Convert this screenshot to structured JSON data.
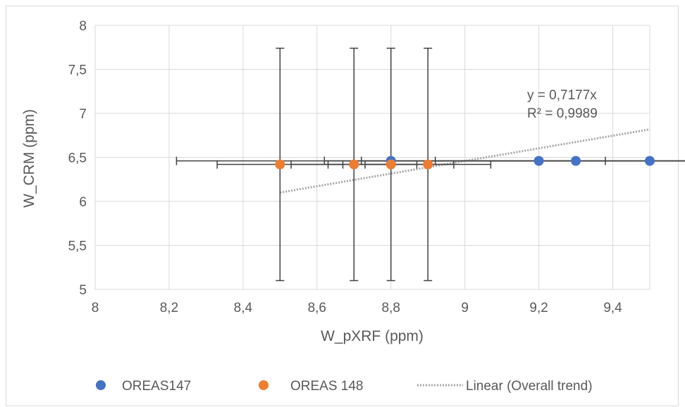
{
  "chart_data": {
    "type": "scatter",
    "title": "",
    "xlabel": "W_pXRF (ppm)",
    "ylabel": "W_CRM (ppm)",
    "xlim": [
      8,
      9.5
    ],
    "ylim": [
      5,
      8
    ],
    "x_ticks": [
      "8",
      "8,2",
      "8,4",
      "8,6",
      "8,8",
      "9",
      "9,2",
      "9,4"
    ],
    "x_tick_values": [
      8,
      8.2,
      8.4,
      8.6,
      8.8,
      9,
      9.2,
      9.4
    ],
    "y_ticks": [
      "5",
      "5,5",
      "6",
      "6,5",
      "7",
      "7,5",
      "8"
    ],
    "y_tick_values": [
      5,
      5.5,
      6,
      6.5,
      7,
      7.5,
      8
    ],
    "grid": "vertical and horizontal major gridlines",
    "series": [
      {
        "name": "OREAS147",
        "color": "#4472c4",
        "points": [
          {
            "x": 8.8,
            "y": 6.46
          },
          {
            "x": 9.2,
            "y": 6.46
          },
          {
            "x": 9.3,
            "y": 6.46
          },
          {
            "x": 9.5,
            "y": 6.46
          }
        ],
        "x_error": 0.58,
        "y_error": 0,
        "error_bar_style": "horizontal only"
      },
      {
        "name": "OREAS 148",
        "color": "#ed7d31",
        "points": [
          {
            "x": 8.5,
            "y": 6.42
          },
          {
            "x": 8.7,
            "y": 6.42
          },
          {
            "x": 8.8,
            "y": 6.42
          },
          {
            "x": 8.9,
            "y": 6.42
          }
        ],
        "x_error": 0.17,
        "y_error": 1.32,
        "error_bar_style": "horizontal and vertical"
      }
    ],
    "trendline": {
      "name": "Linear (Overall trend)",
      "type": "linear through origin",
      "slope": 0.7177,
      "x_range": [
        8.5,
        9.5
      ],
      "color": "#a6a6a6",
      "style": "dotted",
      "equation_label": "y = 0,7177x",
      "r2_label": "R² = 0,9989"
    },
    "legend": {
      "position": "bottom",
      "entries": [
        "OREAS147",
        "OREAS 148",
        "Linear (Overall trend)"
      ]
    }
  }
}
